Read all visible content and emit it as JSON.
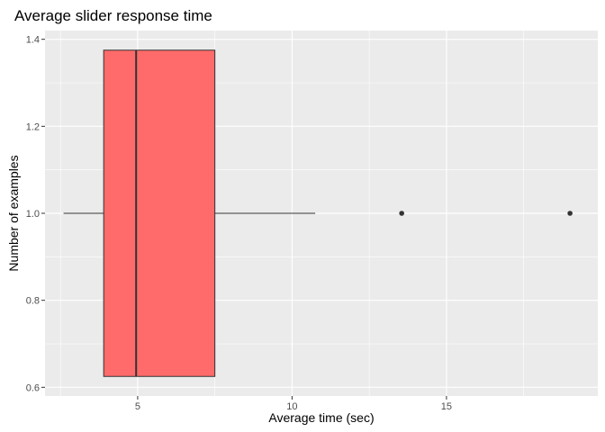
{
  "chart_data": {
    "type": "boxplot",
    "title": "Average slider response time",
    "xlabel": "Average time (sec)",
    "ylabel": "Number of examples",
    "xlim": [
      2.0,
      19.9
    ],
    "ylim": [
      0.58,
      1.42
    ],
    "x_ticks": [
      5,
      10,
      15
    ],
    "x_tick_labels": [
      "5",
      "10",
      "15"
    ],
    "y_ticks": [
      0.6,
      0.8,
      1.0,
      1.2,
      1.4
    ],
    "y_tick_labels": [
      "0.6",
      "0.8",
      "1.0",
      "1.2",
      "1.4"
    ],
    "grid": true,
    "box": {
      "y": 1.0,
      "y_low": 0.625,
      "y_high": 1.375,
      "whisker_low": 2.6,
      "q1": 3.9,
      "median": 4.95,
      "q3": 7.5,
      "whisker_high": 10.75
    },
    "outliers": [
      13.55,
      19.0
    ],
    "colors": {
      "box_fill": "#ff6a6a",
      "line": "#333333",
      "panel_bg": "#ebebeb",
      "grid": "#ffffff"
    }
  }
}
